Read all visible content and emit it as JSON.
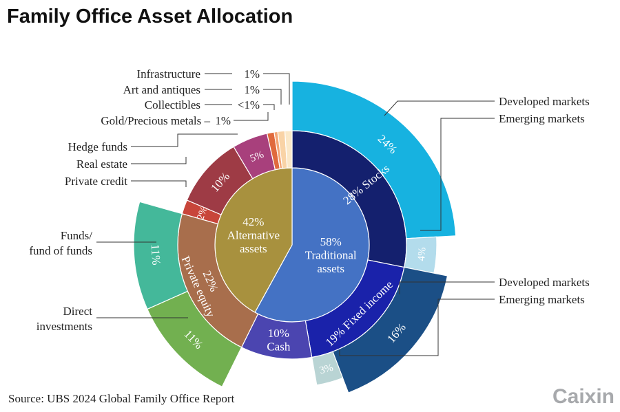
{
  "title": "Family Office Asset Allocation",
  "source": "Source: UBS 2024 Global Family Office Report",
  "logo": "Caixin",
  "chart_data": {
    "type": "pie",
    "subtype": "sunburst",
    "rings": {
      "center": [
        {
          "name": "Traditional assets",
          "pct_label": "58%",
          "value": 58,
          "color": "#4472c4"
        },
        {
          "name": "Alternative assets",
          "pct_label": "42%",
          "value": 42,
          "color": "#a8913e"
        }
      ],
      "middle": [
        {
          "name": "Stocks",
          "label": "28% Stocks",
          "value": 28,
          "color": "#14206e"
        },
        {
          "name": "Fixed income",
          "label": "19% Fixed income",
          "value": 19,
          "color": "#1a22aa"
        },
        {
          "name": "Cash",
          "label": "10% Cash",
          "value": 10,
          "color": "#4b45b0"
        },
        {
          "name": "Private equity",
          "label": "22% Private equity",
          "value": 22,
          "color": "#a86e4c"
        },
        {
          "name": "Private credit",
          "label": "2%",
          "value": 2,
          "color": "#c8453a"
        },
        {
          "name": "Real estate",
          "label": "10%",
          "value": 10,
          "color": "#9e3b45"
        },
        {
          "name": "Hedge funds",
          "label": "5%",
          "value": 5,
          "color": "#a8407c"
        },
        {
          "name": "Gold/Precious metals",
          "label": "",
          "value": 1,
          "color": "#e06a3d"
        },
        {
          "name": "Collectibles",
          "label": "",
          "value": 0.5,
          "color": "#f4a574"
        },
        {
          "name": "Art and antiques",
          "label": "",
          "value": 1,
          "color": "#f9d3a6"
        },
        {
          "name": "Infrastructure",
          "label": "",
          "value": 1,
          "color": "#fbe8c8"
        }
      ],
      "outer": [
        {
          "name": "Stocks – Developed markets",
          "label": "24%",
          "value": 24,
          "color": "#17b2e0"
        },
        {
          "name": "Stocks – Emerging markets",
          "label": "4%",
          "value": 4,
          "color": "#b3dcec"
        },
        {
          "name": "Fixed income – Developed markets",
          "label": "16%",
          "value": 16,
          "color": "#1b4f86"
        },
        {
          "name": "Fixed income – Emerging markets",
          "label": "3%",
          "value": 3,
          "color": "#b9d4d4"
        },
        {
          "name": "Private equity – Direct investments",
          "label": "11%",
          "value": 11,
          "color": "#72b050"
        },
        {
          "name": "Private equity – Funds/fund of funds",
          "label": "11%",
          "value": 11,
          "color": "#44b89a"
        }
      ]
    },
    "callouts": {
      "infrastructure": {
        "name": "Infrastructure",
        "pct": "1%"
      },
      "art": {
        "name": "Art and antiques",
        "pct": "1%"
      },
      "collectibles": {
        "name": "Collectibles",
        "pct": "<1%"
      },
      "gold": {
        "name": "Gold/Precious metals –",
        "pct": "1%"
      },
      "hedge": "Hedge funds",
      "realestate": "Real estate",
      "privatecredit": "Private credit",
      "funds_line1": "Funds/",
      "funds_line2": "fund of funds",
      "direct_line1": "Direct",
      "direct_line2": "investments",
      "stocks_dev": "Developed markets",
      "stocks_em": "Emerging markets",
      "fi_dev": "Developed markets",
      "fi_em": "Emerging markets"
    }
  }
}
